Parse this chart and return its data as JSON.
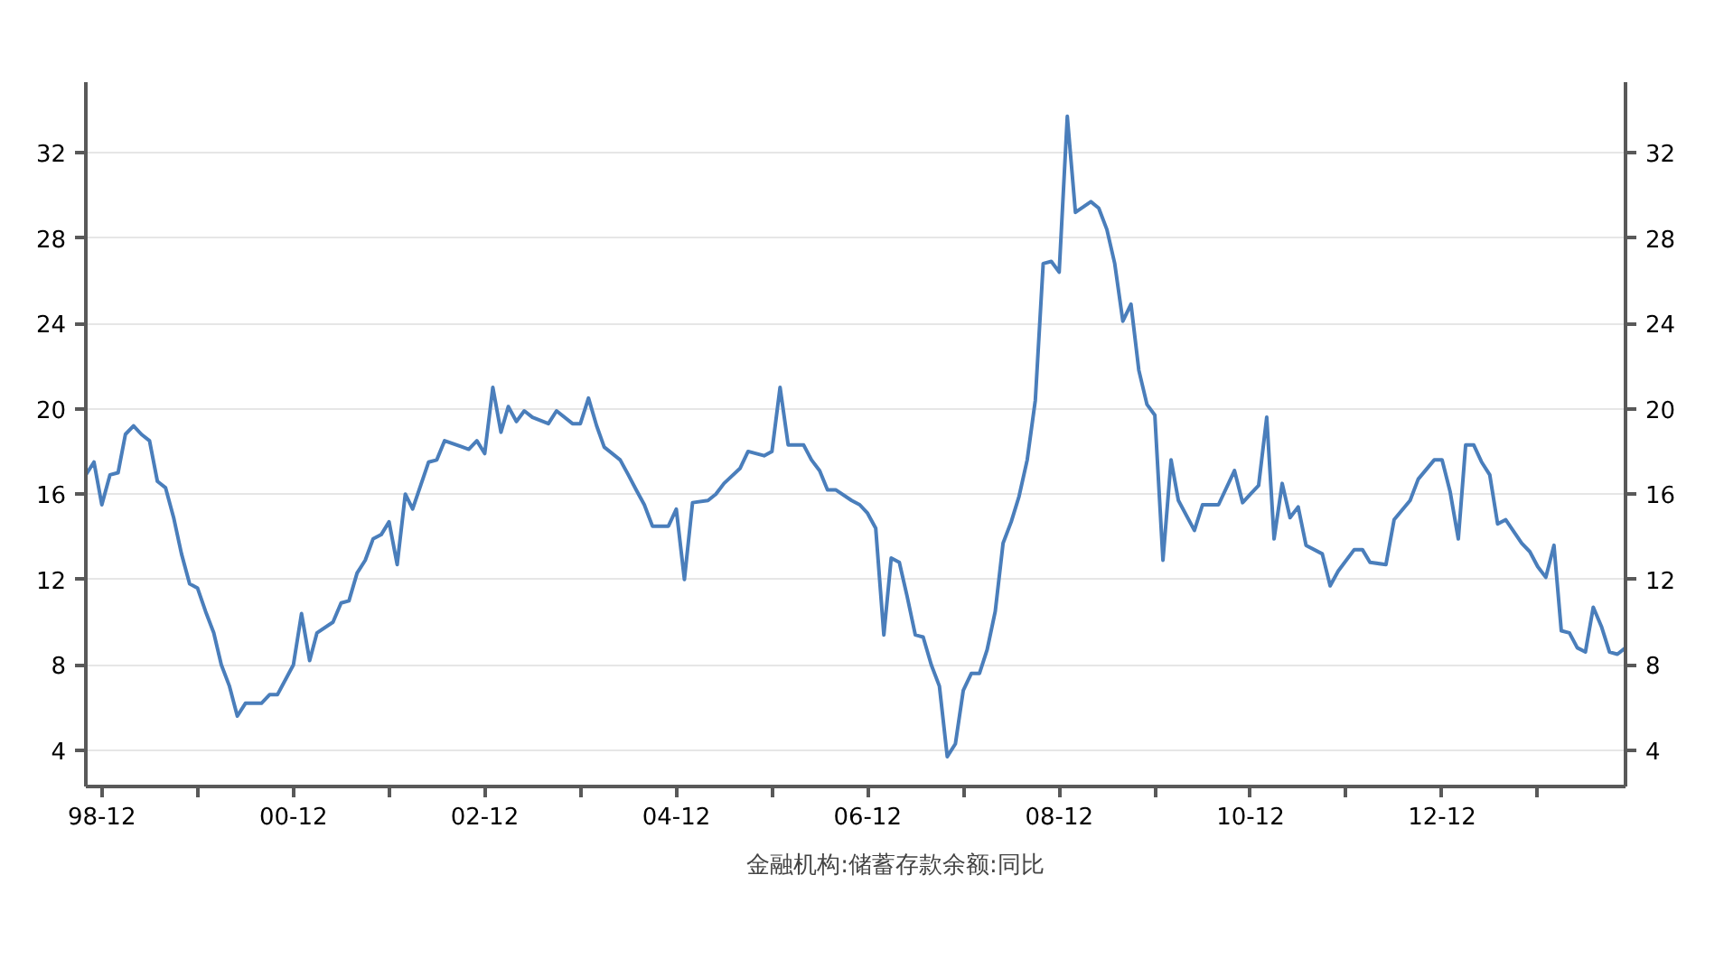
{
  "chart_data": {
    "type": "line",
    "xlim": [
      "1998-10",
      "2014-11"
    ],
    "ylim": [
      2.3,
      35.3
    ],
    "yticks": [
      4,
      8,
      12,
      16,
      20,
      24,
      28,
      32
    ],
    "y2lim": [
      2.3,
      35.3
    ],
    "y2ticks": [
      4,
      8,
      12,
      16,
      20,
      24,
      28,
      32
    ],
    "xticks": [
      {
        "value": "1998-12",
        "label": "98-12"
      },
      {
        "value": "1999-12",
        "label": null
      },
      {
        "value": "2000-12",
        "label": "00-12"
      },
      {
        "value": "2001-12",
        "label": null
      },
      {
        "value": "2002-12",
        "label": "02-12"
      },
      {
        "value": "2003-12",
        "label": null
      },
      {
        "value": "2004-12",
        "label": "04-12"
      },
      {
        "value": "2005-12",
        "label": null
      },
      {
        "value": "2006-12",
        "label": "06-12"
      },
      {
        "value": "2007-12",
        "label": null
      },
      {
        "value": "2008-12",
        "label": "08-12"
      },
      {
        "value": "2009-12",
        "label": null
      },
      {
        "value": "2010-12",
        "label": "10-12"
      },
      {
        "value": "2011-12",
        "label": null
      },
      {
        "value": "2012-12",
        "label": "12-12"
      },
      {
        "value": "2013-12",
        "label": null
      }
    ],
    "grid": "y",
    "legend": "bottom",
    "line_style": "solid",
    "series": [
      {
        "name": "金融机构:储蓄存款余额:同比",
        "color": "#4a7ebb",
        "x": [
          "1998-10",
          "1998-11",
          "1998-12",
          "1999-01",
          "1999-02",
          "1999-03",
          "1999-04",
          "1999-05",
          "1999-06",
          "1999-07",
          "1999-08",
          "1999-09",
          "1999-10",
          "1999-11",
          "1999-12",
          "2000-01",
          "2000-02",
          "2000-03",
          "2000-04",
          "2000-05",
          "2000-06",
          "2000-08",
          "2000-09",
          "2000-10",
          "2000-12",
          "2001-01",
          "2001-02",
          "2001-03",
          "2001-05",
          "2001-06",
          "2001-07",
          "2001-08",
          "2001-09",
          "2001-10",
          "2001-11",
          "2001-12",
          "2002-01",
          "2002-02",
          "2002-03",
          "2002-05",
          "2002-06",
          "2002-07",
          "2002-10",
          "2002-11",
          "2002-12",
          "2003-01",
          "2003-02",
          "2003-03",
          "2003-04",
          "2003-05",
          "2003-06",
          "2003-08",
          "2003-09",
          "2003-11",
          "2003-12",
          "2004-01",
          "2004-02",
          "2004-03",
          "2004-05",
          "2004-06",
          "2004-07",
          "2004-08",
          "2004-09",
          "2004-11",
          "2004-12",
          "2005-01",
          "2005-02",
          "2005-04",
          "2005-05",
          "2005-06",
          "2005-08",
          "2005-09",
          "2005-11",
          "2005-12",
          "2006-01",
          "2006-02",
          "2006-04",
          "2006-05",
          "2006-06",
          "2006-07",
          "2006-08",
          "2006-10",
          "2006-11",
          "2006-12",
          "2007-01",
          "2007-02",
          "2007-03",
          "2007-04",
          "2007-05",
          "2007-06",
          "2007-07",
          "2007-08",
          "2007-09",
          "2007-10",
          "2007-11",
          "2007-12",
          "2008-01",
          "2008-02",
          "2008-03",
          "2008-04",
          "2008-05",
          "2008-06",
          "2008-07",
          "2008-08",
          "2008-09",
          "2008-10",
          "2008-11",
          "2008-12",
          "2009-01",
          "2009-02",
          "2009-04",
          "2009-05",
          "2009-06",
          "2009-07",
          "2009-08",
          "2009-09",
          "2009-10",
          "2009-11",
          "2009-12",
          "2010-01",
          "2010-02",
          "2010-03",
          "2010-05",
          "2010-06",
          "2010-08",
          "2010-10",
          "2010-11",
          "2010-12",
          "2011-01",
          "2011-02",
          "2011-03",
          "2011-04",
          "2011-05",
          "2011-06",
          "2011-07",
          "2011-09",
          "2011-10",
          "2011-11",
          "2012-01",
          "2012-02",
          "2012-03",
          "2012-05",
          "2012-06",
          "2012-08",
          "2012-09",
          "2012-11",
          "2012-12",
          "2013-01",
          "2013-02",
          "2013-03",
          "2013-04",
          "2013-05",
          "2013-06",
          "2013-07",
          "2013-08",
          "2013-10",
          "2013-11",
          "2013-12",
          "2014-01",
          "2014-02",
          "2014-03",
          "2014-04",
          "2014-05",
          "2014-06",
          "2014-07",
          "2014-08",
          "2014-09",
          "2014-10",
          "2014-11"
        ],
        "values": [
          16.9,
          17.5,
          15.5,
          16.9,
          17.0,
          18.8,
          19.2,
          18.8,
          18.5,
          16.6,
          16.3,
          14.9,
          13.2,
          11.8,
          11.6,
          10.5,
          9.5,
          8.0,
          7.0,
          5.6,
          6.2,
          6.2,
          6.6,
          6.6,
          8.0,
          10.4,
          8.2,
          9.5,
          10.0,
          10.9,
          11.0,
          12.3,
          12.9,
          13.9,
          14.1,
          14.7,
          12.7,
          16.0,
          15.3,
          17.5,
          17.6,
          18.5,
          18.1,
          18.5,
          17.9,
          21.0,
          18.9,
          20.1,
          19.4,
          19.9,
          19.6,
          19.3,
          19.9,
          19.3,
          19.3,
          20.5,
          19.2,
          18.2,
          17.6,
          16.9,
          16.2,
          15.5,
          14.5,
          14.5,
          15.3,
          12.0,
          15.6,
          15.7,
          16.0,
          16.5,
          17.2,
          18.0,
          17.8,
          18.0,
          21.0,
          18.3,
          18.3,
          17.6,
          17.1,
          16.2,
          16.2,
          15.7,
          15.5,
          15.1,
          14.4,
          9.4,
          13.0,
          12.8,
          11.2,
          9.4,
          9.3,
          8.0,
          7.0,
          3.7,
          4.3,
          6.8,
          7.6,
          7.6,
          8.7,
          10.5,
          13.7,
          14.7,
          15.9,
          17.6,
          20.4,
          26.8,
          26.9,
          26.4,
          33.7,
          29.2,
          29.7,
          29.4,
          28.4,
          26.8,
          24.1,
          24.9,
          21.8,
          20.2,
          19.7,
          12.9,
          17.6,
          15.7,
          14.3,
          15.5,
          15.5,
          17.1,
          15.6,
          16.0,
          16.4,
          19.6,
          13.9,
          16.5,
          14.9,
          15.4,
          13.6,
          13.2,
          11.7,
          12.4,
          13.4,
          13.4,
          12.8,
          12.7,
          14.8,
          15.7,
          16.7,
          17.6,
          17.6,
          16.1,
          13.9,
          18.3,
          18.3,
          17.5,
          16.9,
          14.6,
          14.8,
          13.7,
          13.3,
          12.6,
          12.1,
          13.6,
          9.6,
          9.5,
          8.8,
          8.6,
          10.7,
          9.8,
          8.6,
          8.5,
          8.8
        ]
      }
    ]
  }
}
